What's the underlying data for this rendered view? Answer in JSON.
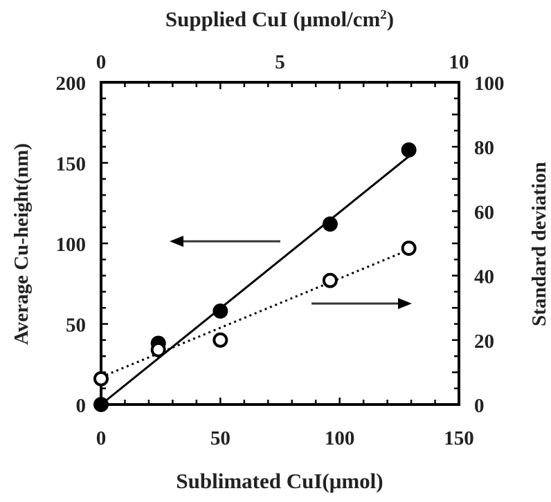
{
  "chart_data": {
    "type": "scatter",
    "xlabel": "Sublimated CuI(μmol)",
    "x2label": "Supplied CuI (μmol/cm",
    "x2label_sup": "2",
    "x2label_end": ")",
    "ylabel": "Average Cu-height(nm)",
    "y2label": "Standard deviation",
    "xlim": [
      0,
      150
    ],
    "x2lim": [
      0,
      10
    ],
    "ylim": [
      0,
      200
    ],
    "y2lim": [
      0,
      100
    ],
    "xticks": [
      "0",
      "50",
      "100",
      "150"
    ],
    "x2ticks": [
      "0",
      "5",
      "10"
    ],
    "yticks": [
      "0",
      "50",
      "100",
      "150",
      "200"
    ],
    "y2ticks": [
      "0",
      "20",
      "40",
      "60",
      "80",
      "100"
    ],
    "grid": false,
    "series": [
      {
        "axis": "left",
        "marker": "filled-circle",
        "line": "solid",
        "x": [
          0,
          24,
          50,
          96,
          129
        ],
        "y": [
          0,
          38,
          58,
          112,
          158
        ],
        "fit": [
          [
            0,
            0
          ],
          [
            129,
            154
          ]
        ],
        "arrow": "left"
      },
      {
        "axis": "right",
        "marker": "open-circle",
        "line": "dotted",
        "x": [
          0,
          24,
          50,
          96,
          129
        ],
        "y": [
          8,
          17,
          20,
          38.5,
          48.5
        ],
        "fit": [
          [
            0,
            8.5
          ],
          [
            129,
            48
          ]
        ],
        "arrow": "right"
      }
    ],
    "colors": {
      "ink": "#000000"
    }
  }
}
